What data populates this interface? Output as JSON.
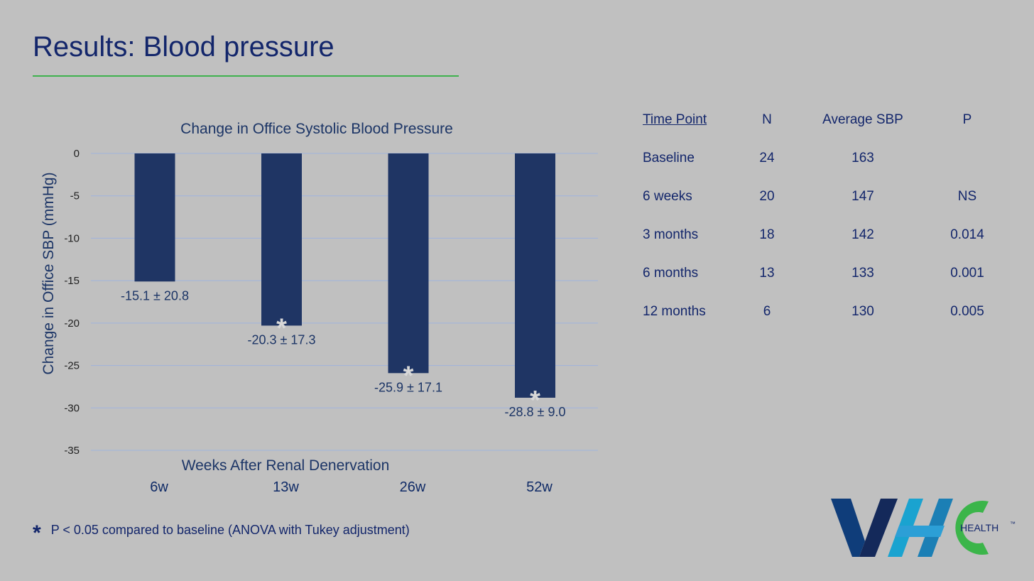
{
  "slide": {
    "title": "Results: Blood pressure"
  },
  "colors": {
    "bar": "#1f3564",
    "grid": "#9fb3dd",
    "rule": "#3fb24e",
    "star": "#d8d8d8",
    "logo_blue": "#0f3d7a",
    "logo_cyan": "#1aa3d0",
    "logo_green": "#3bb54a"
  },
  "chart_data": {
    "type": "bar",
    "title": "Change in Office Systolic Blood Pressure",
    "xlabel": "Weeks After Renal Denervation",
    "ylabel": "Change in Office SBP (mmHg)",
    "categories": [
      "6w",
      "13w",
      "26w",
      "52w"
    ],
    "values": [
      -15.1,
      -20.3,
      -25.9,
      -28.8
    ],
    "data_labels": [
      "-15.1 ± 20.8",
      "-20.3 ± 17.3",
      "-25.9 ± 17.1",
      "-28.8 ± 9.0"
    ],
    "significant": [
      false,
      true,
      true,
      true
    ],
    "significance_marker": "*",
    "ylim": [
      -35,
      0
    ],
    "yticks": [
      0,
      -5,
      -10,
      -15,
      -20,
      -25,
      -30,
      -35
    ],
    "grid": true
  },
  "table": {
    "headers": [
      "Time Point",
      "N",
      "Average SBP",
      "P"
    ],
    "rows": [
      [
        "Baseline",
        "24",
        "163",
        ""
      ],
      [
        "6 weeks",
        "20",
        "147",
        "NS"
      ],
      [
        "3 months",
        "18",
        "142",
        "0.014"
      ],
      [
        "6 months",
        "13",
        "133",
        "0.001"
      ],
      [
        "12 months",
        "6",
        "130",
        "0.005"
      ]
    ]
  },
  "footnote": {
    "marker": "*",
    "text": "P < 0.05 compared to baseline (ANOVA with Tukey adjustment)"
  },
  "logo": {
    "text": "HEALTH",
    "tm": "™"
  }
}
